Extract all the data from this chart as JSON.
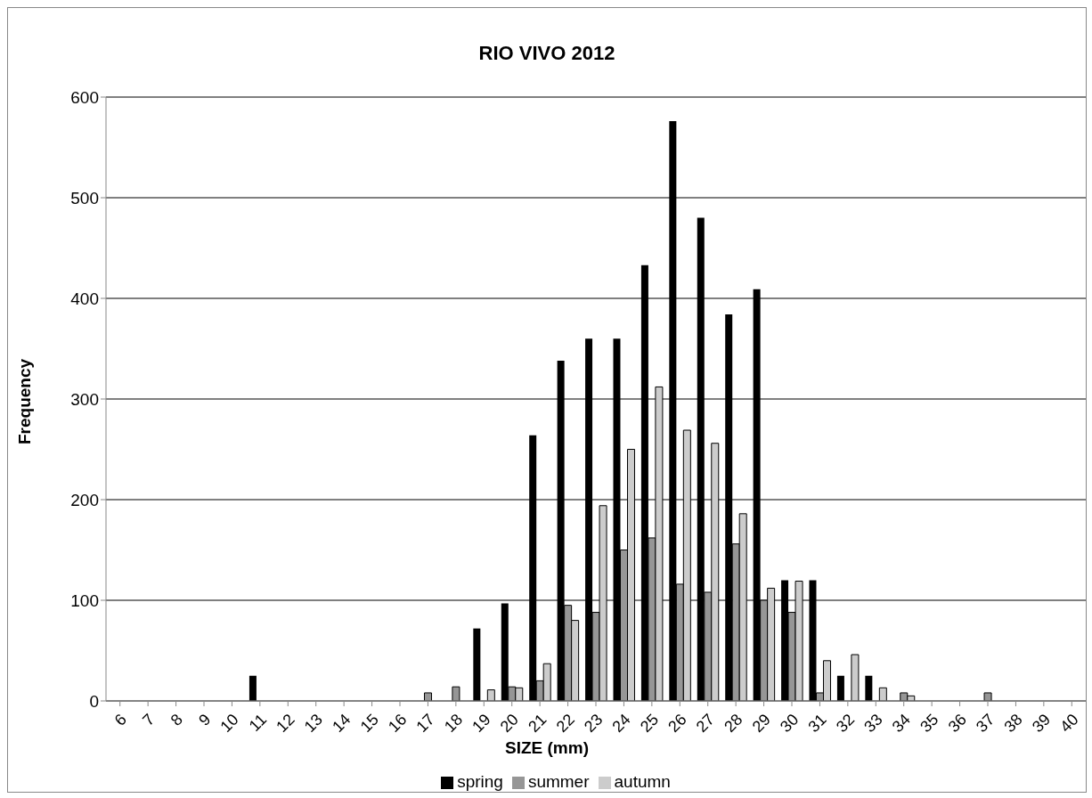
{
  "chart_data": {
    "type": "bar",
    "title": "RIO VIVO 2012",
    "xlabel": "SIZE (mm)",
    "ylabel": "Frequency",
    "categories": [
      "6",
      "7",
      "8",
      "9",
      "10",
      "11",
      "12",
      "13",
      "14",
      "15",
      "16",
      "17",
      "18",
      "19",
      "20",
      "21",
      "22",
      "23",
      "24",
      "25",
      "26",
      "27",
      "28",
      "29",
      "30",
      "31",
      "32",
      "33",
      "34",
      "35",
      "36",
      "37",
      "38",
      "39",
      "40"
    ],
    "series": [
      {
        "name": "spring",
        "color": "#000000",
        "values": [
          0,
          0,
          0,
          0,
          0,
          25,
          0,
          0,
          0,
          0,
          0,
          0,
          0,
          72,
          97,
          264,
          338,
          360,
          360,
          433,
          576,
          480,
          384,
          409,
          120,
          120,
          25,
          25,
          0,
          0,
          0,
          0,
          0,
          0,
          0
        ]
      },
      {
        "name": "summer",
        "color": "#969696",
        "values": [
          0,
          0,
          0,
          0,
          0,
          0,
          0,
          0,
          0,
          0,
          0,
          8,
          14,
          0,
          14,
          20,
          95,
          88,
          150,
          162,
          116,
          108,
          156,
          100,
          88,
          8,
          0,
          0,
          8,
          0,
          0,
          8,
          0,
          0,
          0
        ]
      },
      {
        "name": "autumn",
        "color": "#cccccc",
        "values": [
          0,
          0,
          0,
          0,
          0,
          0,
          0,
          0,
          0,
          0,
          0,
          0,
          0,
          11,
          13,
          37,
          80,
          194,
          250,
          312,
          269,
          256,
          186,
          112,
          119,
          40,
          46,
          13,
          5,
          0,
          0,
          0,
          0,
          0,
          0
        ]
      }
    ],
    "ylim": [
      0,
      600
    ],
    "yticks": [
      0,
      100,
      200,
      300,
      400,
      500,
      600
    ],
    "grid": "y",
    "legend": "bottom"
  }
}
